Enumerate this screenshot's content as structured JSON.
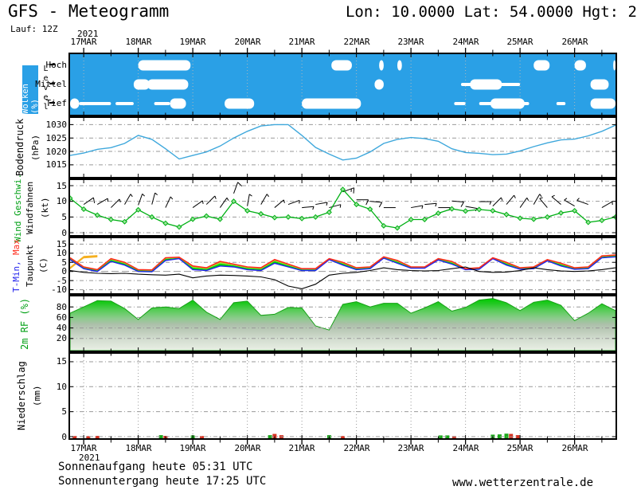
{
  "header": {
    "title": "GFS - Meteogramm",
    "location": "Lon: 10.0000 Lat: 54.0000 Hgt: 2",
    "run": "Lauf: 12Z"
  },
  "footer": {
    "sunrise": "Sonnenaufgang heute 05:31 UTC",
    "sunset": "Sonnenuntergang heute 17:25 UTC",
    "site": "www.wetterzentrale.de"
  },
  "panels": {
    "clouds": {
      "label": "Wolken (%)",
      "axis2": "Level",
      "levels": [
        "Hoch",
        "Mittel",
        "Tief"
      ]
    },
    "pressure": {
      "label": "Bodendruck",
      "unit": "(hPa)"
    },
    "wind": {
      "label": "Wind Geschwi.",
      "label2": "Windfahnen",
      "unit": "(kt)"
    },
    "temp": {
      "label_min": "T-Min,",
      "label_max": "Max",
      "label2": "Taupunkt",
      "unit": "(C)"
    },
    "rh": {
      "label": "2m RF (%)"
    },
    "precip": {
      "label": "Niederschlag",
      "unit": "(mm)"
    }
  },
  "colors": {
    "cloud_bg": "#2AA0E6",
    "pressure_line": "#3FA8DC",
    "wind_line": "#00B014",
    "tmax_line": "#FF2A1A",
    "tmin_line": "#2222EE",
    "dew_line": "#000000",
    "fill_green": "#00D400",
    "fill_yellowgreen": "#A8DC32",
    "fill_orange": "#F5B020",
    "precip_green": "#18A818",
    "precip_red": "#D83020",
    "grid": "#999999"
  },
  "chart_data": {
    "x_axis": {
      "year": "2021",
      "day_labels": [
        "17MAR",
        "18MAR",
        "19MAR",
        "20MAR",
        "21MAR",
        "22MAR",
        "23MAR",
        "24MAR",
        "25MAR",
        "26MAR"
      ],
      "day_tick_hours": [
        6,
        30,
        54,
        78,
        102,
        126,
        150,
        174,
        198,
        222
      ],
      "minor_tick_hours": [
        18,
        42,
        66,
        90,
        114,
        138,
        162,
        186,
        210,
        234
      ],
      "total_hours": 240,
      "sample_step_hours": 6
    },
    "panels": [
      {
        "id": "clouds",
        "type": "area",
        "title": "Wolken (%)",
        "levels": [
          "Hoch",
          "Mittel",
          "Tief"
        ],
        "blobs": [
          {
            "level": "Tief",
            "from": 0,
            "to": 4,
            "thin": false
          },
          {
            "level": "Tief",
            "from": 4,
            "to": 18,
            "thin": true
          },
          {
            "level": "Tief",
            "from": 20,
            "to": 28,
            "thin": true
          },
          {
            "level": "Tief",
            "from": 37,
            "to": 44,
            "thin": true
          },
          {
            "level": "Tief",
            "from": 44,
            "to": 51,
            "thin": false
          },
          {
            "level": "Tief",
            "from": 68,
            "to": 81,
            "thin": false
          },
          {
            "level": "Tief",
            "from": 102,
            "to": 128,
            "thin": false
          },
          {
            "level": "Tief",
            "from": 169,
            "to": 174,
            "thin": true
          },
          {
            "level": "Tief",
            "from": 180,
            "to": 202,
            "thin": true
          },
          {
            "level": "Tief",
            "from": 185,
            "to": 200,
            "thin": false
          },
          {
            "level": "Tief",
            "from": 214,
            "to": 218,
            "thin": true
          },
          {
            "level": "Tief",
            "from": 229,
            "to": 240,
            "thin": false
          },
          {
            "level": "Mittel",
            "from": 28,
            "to": 35,
            "thin": false
          },
          {
            "level": "Mittel",
            "from": 34,
            "to": 52,
            "thin": false
          },
          {
            "level": "Mittel",
            "from": 134,
            "to": 138,
            "thin": false
          },
          {
            "level": "Mittel",
            "from": 172,
            "to": 198,
            "thin": true
          },
          {
            "level": "Mittel",
            "from": 176,
            "to": 190,
            "thin": false
          },
          {
            "level": "Mittel",
            "from": 229,
            "to": 237,
            "thin": false
          },
          {
            "level": "Hoch",
            "from": 30,
            "to": 53,
            "thin": false
          },
          {
            "level": "Hoch",
            "from": 115,
            "to": 124,
            "thin": false
          },
          {
            "level": "Hoch",
            "from": 136,
            "to": 138,
            "thin": false
          },
          {
            "level": "Hoch",
            "from": 144,
            "to": 146,
            "thin": false
          },
          {
            "level": "Hoch",
            "from": 204,
            "to": 211,
            "thin": false
          },
          {
            "level": "Hoch",
            "from": 222,
            "to": 227,
            "thin": false
          },
          {
            "level": "Hoch",
            "from": 239,
            "to": 240,
            "thin": false
          }
        ]
      },
      {
        "id": "pressure",
        "type": "line",
        "ylabel": "Bodendruck (hPa)",
        "yticks": [
          1030,
          1025,
          1020,
          1015
        ],
        "ylim": [
          1010.5,
          1032.5
        ],
        "values": [
          1018.5,
          1019.4,
          1020.8,
          1021.4,
          1023.0,
          1026.0,
          1024.5,
          1021.0,
          1017.2,
          1018.5,
          1019.8,
          1022.0,
          1025.0,
          1027.5,
          1029.5,
          1030.0,
          1030.0,
          1026.0,
          1021.5,
          1019.0,
          1016.8,
          1017.5,
          1019.8,
          1023.0,
          1024.5,
          1025.2,
          1024.8,
          1023.8,
          1021.0,
          1019.6,
          1019.3,
          1018.8,
          1019.0,
          1020.2,
          1021.8,
          1023.2,
          1024.3,
          1024.6,
          1025.8,
          1027.5,
          1029.8
        ]
      },
      {
        "id": "wind",
        "type": "line",
        "ylabel": "Wind Geschwi. / Windfahnen (kt)",
        "yticks": [
          15,
          10,
          5,
          0
        ],
        "ylim": [
          0,
          16.8
        ],
        "values": [
          11.0,
          7.5,
          5.6,
          4.2,
          3.5,
          7.3,
          5.0,
          3.0,
          1.8,
          4.3,
          5.3,
          4.3,
          10.0,
          7.0,
          6.0,
          4.8,
          5.0,
          4.5,
          5.0,
          6.5,
          13.8,
          9.0,
          7.5,
          2.2,
          1.5,
          4.2,
          4.2,
          6.2,
          7.6,
          6.9,
          7.4,
          7.0,
          5.8,
          4.6,
          4.3,
          5.0,
          6.3,
          7.0,
          3.3,
          3.9,
          5.0
        ],
        "barb_dir_deg": [
          50,
          55,
          60,
          45,
          30,
          20,
          15,
          25,
          40,
          55,
          45,
          35,
          20,
          10,
          30,
          50,
          70,
          85,
          80,
          75,
          70,
          90,
          95,
          90,
          85,
          80,
          85,
          90,
          95,
          100,
          90,
          45,
          40,
          35,
          30,
          320,
          310,
          300,
          290,
          60,
          55
        ]
      },
      {
        "id": "temp",
        "type": "line",
        "ylabel": "T-Min, Max / Taupunkt (C)",
        "yticks": [
          15,
          10,
          5,
          0,
          -5,
          -10
        ],
        "ylim": [
          -11.9,
          18.2
        ],
        "series": [
          {
            "name": "T-Max",
            "values": [
              7.5,
              2.5,
              1.0,
              7.0,
              5.0,
              1.0,
              0.8,
              7.5,
              7.8,
              3.0,
              2.0,
              5.5,
              4.0,
              2.5,
              2.0,
              6.5,
              4.0,
              1.5,
              1.5,
              7.0,
              5.0,
              2.0,
              2.5,
              8.0,
              6.0,
              2.5,
              2.5,
              7.0,
              5.5,
              1.5,
              2.0,
              7.5,
              5.0,
              2.0,
              2.5,
              6.5,
              4.5,
              2.0,
              2.5,
              8.5,
              9.0
            ]
          },
          {
            "name": "T-Min",
            "values": [
              6.5,
              1.5,
              0.0,
              5.5,
              3.5,
              0.0,
              -0.2,
              6.0,
              7.0,
              1.0,
              0.5,
              3.0,
              2.5,
              1.0,
              0.5,
              4.5,
              2.5,
              0.5,
              0.5,
              6.5,
              3.5,
              1.0,
              1.5,
              7.3,
              4.5,
              1.8,
              1.8,
              6.3,
              4.0,
              1.0,
              1.2,
              7.0,
              3.5,
              1.2,
              1.5,
              5.8,
              3.0,
              1.2,
              1.5,
              7.5,
              8.0
            ]
          },
          {
            "name": "Taupunkt",
            "values": [
              0.5,
              -0.5,
              -1.0,
              -1.2,
              -1.0,
              -1.5,
              -1.8,
              -2.0,
              -1.5,
              -3.5,
              -2.5,
              -2.0,
              -2.2,
              -2.5,
              -3.0,
              -4.5,
              -8.0,
              -9.5,
              -7.0,
              -2.0,
              -1.0,
              -0.5,
              0.5,
              2.0,
              1.0,
              0.5,
              0.3,
              0.5,
              1.5,
              2.5,
              0.0,
              -0.5,
              -0.3,
              0.5,
              2.0,
              1.0,
              0.3,
              0.0,
              0.3,
              1.0,
              2.0
            ]
          }
        ]
      },
      {
        "id": "rh",
        "type": "area",
        "ylabel": "2m RF (%)",
        "yticks": [
          80,
          60,
          40,
          20
        ],
        "ylim": [
          0,
          100
        ],
        "values": [
          68,
          80,
          92,
          91,
          77,
          56,
          78,
          80,
          77,
          93,
          70,
          56,
          88,
          91,
          64,
          66,
          79,
          78,
          44,
          36,
          85,
          90,
          80,
          87,
          87,
          68,
          78,
          90,
          72,
          79,
          93,
          96,
          88,
          73,
          89,
          93,
          83,
          54,
          68,
          86,
          73
        ]
      },
      {
        "id": "precip",
        "type": "bar",
        "ylabel": "Niederschlag (mm)",
        "yticks": [
          15,
          10,
          5,
          0
        ],
        "ylim": [
          0,
          16.6
        ],
        "bars": [
          {
            "h": 2,
            "mm": 0.12,
            "kind": "red"
          },
          {
            "h": 8,
            "mm": 0.1,
            "kind": "red"
          },
          {
            "h": 12,
            "mm": 0.15,
            "kind": "red"
          },
          {
            "h": 40,
            "mm": 0.3,
            "kind": "green"
          },
          {
            "h": 42,
            "mm": 0.15,
            "kind": "red"
          },
          {
            "h": 54,
            "mm": 0.25,
            "kind": "green"
          },
          {
            "h": 58,
            "mm": 0.12,
            "kind": "red"
          },
          {
            "h": 88,
            "mm": 0.3,
            "kind": "green"
          },
          {
            "h": 90,
            "mm": 0.55,
            "kind": "red"
          },
          {
            "h": 93,
            "mm": 0.3,
            "kind": "red"
          },
          {
            "h": 114,
            "mm": 0.3,
            "kind": "green"
          },
          {
            "h": 120,
            "mm": 0.12,
            "kind": "red"
          },
          {
            "h": 163,
            "mm": 0.25,
            "kind": "green"
          },
          {
            "h": 166,
            "mm": 0.25,
            "kind": "green"
          },
          {
            "h": 169,
            "mm": 0.12,
            "kind": "red"
          },
          {
            "h": 186,
            "mm": 0.4,
            "kind": "green"
          },
          {
            "h": 189,
            "mm": 0.45,
            "kind": "green"
          },
          {
            "h": 192,
            "mm": 0.6,
            "kind": "green"
          },
          {
            "h": 194,
            "mm": 0.55,
            "kind": "red"
          },
          {
            "h": 197,
            "mm": 0.3,
            "kind": "red"
          }
        ]
      }
    ]
  }
}
